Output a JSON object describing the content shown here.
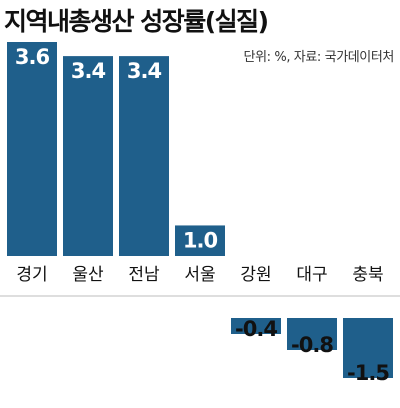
{
  "chart_data": {
    "type": "bar",
    "title": "지역내총생산 성장률(실질)",
    "note": "단위: %, 자료: 국가데이터처",
    "categories": [
      "경기",
      "울산",
      "전남",
      "서울",
      "강원",
      "대구",
      "충북"
    ],
    "values": [
      3.6,
      3.4,
      3.4,
      1.0,
      -0.4,
      -0.8,
      -1.5
    ],
    "value_labels": [
      "3.6",
      "3.4",
      "3.4",
      "1.0",
      "-0.4",
      "-0.8",
      "-1.5"
    ],
    "bar_color": "#1f5f8b",
    "positive_label_color": "#ffffff",
    "negative_label_color": "#111111",
    "ylim": [
      -1.5,
      3.6
    ],
    "grid": false,
    "legend": "none"
  }
}
